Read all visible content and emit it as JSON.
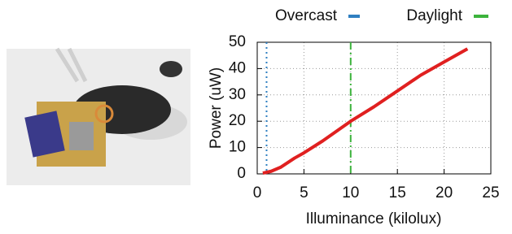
{
  "chart_data": {
    "type": "line",
    "x_label": "Illuminance (kilolux)",
    "y_label": "Power (uW)",
    "xlim": [
      0,
      25
    ],
    "xticks": [
      0,
      5,
      10,
      15,
      20,
      25
    ],
    "ylim": [
      0,
      50
    ],
    "yticks": [
      0,
      10,
      20,
      30,
      40,
      50
    ],
    "grid": true,
    "legend": "top",
    "series": [
      {
        "color": "#e02020",
        "x": [
          0.6,
          1.5,
          2.5,
          4,
          5,
          7,
          10,
          12.5,
          15,
          17.5,
          20,
          22.5
        ],
        "values": [
          0.3,
          1,
          2.5,
          6,
          8,
          12.5,
          20,
          25.5,
          31.5,
          37.5,
          42.5,
          47.5
        ]
      }
    ],
    "reference_lines": [
      {
        "name": "Overcast",
        "x": 1,
        "color": "#2f7fc1",
        "dash": "dotted"
      },
      {
        "name": "Daylight",
        "x": 10,
        "color": "#3cb33c",
        "dash": "dashdot"
      }
    ]
  }
}
